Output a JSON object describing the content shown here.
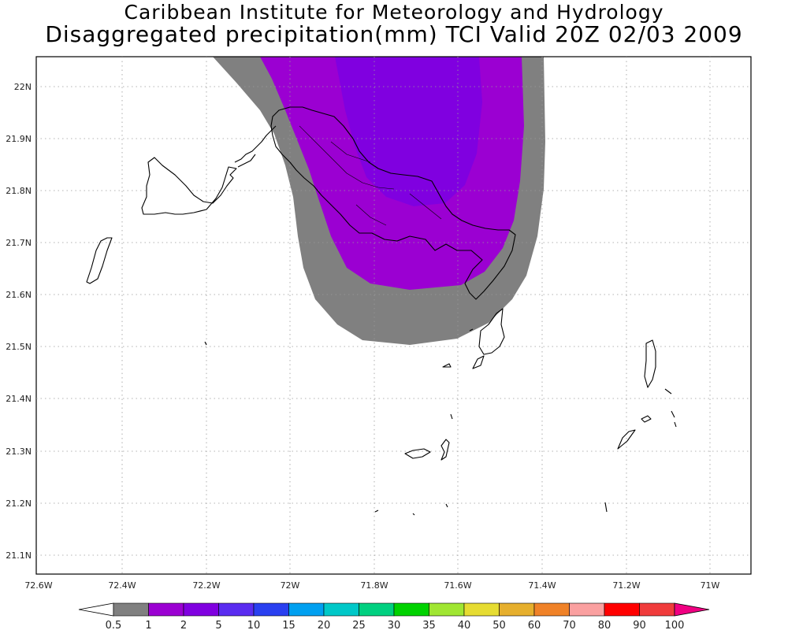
{
  "header": {
    "line1": "Caribbean Institute for Meteorology and Hydrology",
    "line2": "Disaggregated precipitation(mm) TCI Valid 20Z 02/03 2009"
  },
  "axes": {
    "lat_labels": [
      "22N",
      "21.9N",
      "21.8N",
      "21.7N",
      "21.6N",
      "21.5N",
      "21.4N",
      "21.3N",
      "21.2N",
      "21.1N"
    ],
    "lon_labels": [
      "72.6W",
      "72.4W",
      "72.2W",
      "72W",
      "71.8W",
      "71.6W",
      "71.4W",
      "71.2W",
      "71W"
    ]
  },
  "colorbar": {
    "labels": [
      "0.5",
      "1",
      "2",
      "5",
      "10",
      "15",
      "20",
      "25",
      "30",
      "35",
      "40",
      "50",
      "60",
      "70",
      "80",
      "90",
      "100"
    ],
    "colors": [
      "#808080",
      "#9b00d2",
      "#8000e0",
      "#5a2cf0",
      "#2a40f0",
      "#00a0f0",
      "#00c8c8",
      "#00d080",
      "#00d200",
      "#a0e632",
      "#e6dc32",
      "#e6af2d",
      "#f08228",
      "#faa0a0",
      "#ff0000",
      "#f03c3c"
    ],
    "low_color": "#ffffff",
    "high_color": "#f00082"
  },
  "precip_colors": {
    "band_0_5_1": "#808080",
    "band_1_2": "#9b00d2",
    "band_2_5": "#8000e0"
  }
}
